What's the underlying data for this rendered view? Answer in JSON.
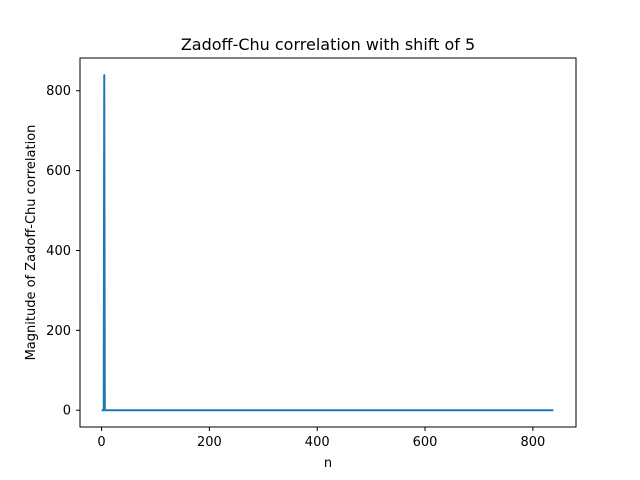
{
  "chart_data": {
    "type": "line",
    "title": "Zadoff-Chu correlation with shift of 5",
    "xlabel": "n",
    "ylabel": "Magnitude of Zadoff-Chu correlation",
    "xlim": [
      -40,
      880
    ],
    "ylim": [
      -42,
      882
    ],
    "xticks": [
      0,
      200,
      400,
      600,
      800
    ],
    "yticks": [
      0,
      200,
      400,
      600,
      800
    ],
    "grid": false,
    "series": [
      {
        "color": "#1f77b4",
        "x": [
          0,
          4,
          5,
          6,
          838
        ],
        "y": [
          0,
          0,
          839,
          0,
          0
        ]
      }
    ]
  }
}
